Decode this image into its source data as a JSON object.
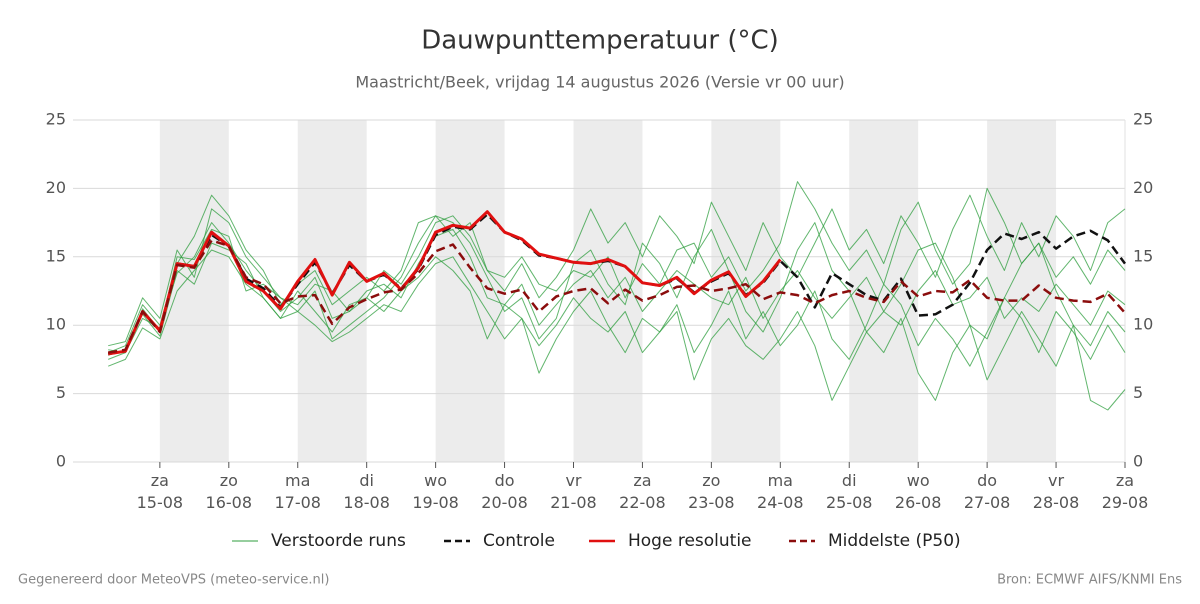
{
  "chart_data": {
    "type": "line",
    "title": "Dauwpunttemperatuur (°C)",
    "subtitle": "Maastricht/Beek, vrijdag 14 augustus 2026 (Versie vr 00 uur)",
    "footer_left": "Gegenereerd door MeteoVPS (meteo-service.nl)",
    "footer_right": "Bron: ECMWF AIFS/KNMI Ens",
    "grid": true,
    "xlim": [
      -0.26,
      15
    ],
    "xticks": [
      {
        "value": 1,
        "label": "za\n15-08"
      },
      {
        "value": 2,
        "label": "zo\n16-08"
      },
      {
        "value": 3,
        "label": "ma\n17-08"
      },
      {
        "value": 4,
        "label": "di\n18-08"
      },
      {
        "value": 5,
        "label": "wo\n19-08"
      },
      {
        "value": 6,
        "label": "do\n20-08"
      },
      {
        "value": 7,
        "label": "vr\n21-08"
      },
      {
        "value": 8,
        "label": "za\n22-08"
      },
      {
        "value": 9,
        "label": "zo\n23-08"
      },
      {
        "value": 10,
        "label": "ma\n24-08"
      },
      {
        "value": 11,
        "label": "di\n25-08"
      },
      {
        "value": 12,
        "label": "wo\n26-08"
      },
      {
        "value": 13,
        "label": "do\n27-08"
      },
      {
        "value": 14,
        "label": "vr\n28-08"
      },
      {
        "value": 15,
        "label": "za\n29-08"
      }
    ],
    "ylim": [
      0,
      25
    ],
    "yticks": [
      0,
      5,
      10,
      15,
      20,
      25
    ],
    "x": [
      0.25,
      0.5,
      0.75,
      1,
      1.25,
      1.5,
      1.75,
      2,
      2.25,
      2.5,
      2.75,
      3,
      3.25,
      3.5,
      3.75,
      4,
      4.25,
      4.5,
      4.75,
      5,
      5.25,
      5.5,
      5.75,
      6,
      6.25,
      6.5,
      6.75,
      7,
      7.25,
      7.5,
      7.75,
      8,
      8.25,
      8.5,
      8.75,
      9,
      9.25,
      9.5,
      9.75,
      10,
      10.25,
      10.5,
      10.75,
      11,
      11.25,
      11.5,
      11.75,
      12,
      12.25,
      12.5,
      12.75,
      13,
      13.25,
      13.5,
      13.75,
      14,
      14.25,
      14.5,
      14.75,
      15
    ],
    "ensemble": {
      "name": "Verstoorde runs",
      "color": "#2e9e3e",
      "members": [
        [
          7.5,
          8.0,
          10.5,
          9.8,
          13.8,
          15.0,
          17.5,
          16.0,
          14.0,
          12.5,
          11.0,
          12.0,
          13.5,
          10.5,
          11.0,
          12.5,
          13.0,
          12.0,
          14.5,
          16.5,
          17.0,
          15.0,
          12.0,
          11.5,
          13.0,
          10.0,
          11.5,
          13.0,
          14.0,
          12.0,
          13.5,
          11.0,
          12.5,
          14.0,
          13.0,
          12.0,
          11.5,
          13.5,
          10.5,
          12.5,
          14.0,
          12.0,
          10.5,
          12.0,
          13.5,
          11.0,
          10.0,
          12.5,
          14.0,
          11.5,
          12.0,
          13.5,
          10.5,
          12.0,
          11.0,
          13.0,
          11.5,
          10.0,
          12.5,
          11.5
        ],
        [
          8.5,
          8.8,
          12.0,
          10.5,
          15.5,
          13.5,
          18.5,
          17.5,
          15.0,
          13.5,
          12.0,
          11.0,
          12.5,
          9.0,
          10.0,
          11.0,
          12.0,
          13.5,
          16.0,
          18.0,
          17.5,
          16.0,
          13.5,
          11.0,
          12.0,
          9.0,
          10.5,
          14.5,
          15.5,
          13.0,
          11.5,
          16.0,
          14.5,
          12.0,
          15.0,
          17.0,
          14.0,
          11.0,
          9.5,
          12.0,
          15.5,
          17.5,
          14.0,
          12.5,
          9.5,
          11.0,
          13.0,
          15.5,
          16.0,
          13.5,
          10.0,
          9.0,
          12.0,
          14.5,
          16.0,
          12.5,
          10.0,
          8.5,
          11.0,
          9.5
        ],
        [
          7.0,
          7.5,
          9.8,
          9.0,
          12.5,
          14.0,
          15.5,
          15.0,
          13.0,
          12.0,
          10.5,
          11.0,
          10.0,
          8.8,
          9.5,
          10.5,
          11.5,
          11.0,
          13.0,
          14.5,
          15.0,
          13.0,
          11.0,
          9.0,
          10.5,
          6.5,
          9.0,
          11.0,
          12.5,
          10.0,
          8.0,
          10.5,
          9.5,
          11.5,
          8.0,
          10.0,
          12.5,
          9.0,
          11.0,
          8.5,
          10.0,
          12.5,
          9.0,
          7.5,
          10.0,
          13.0,
          11.5,
          8.5,
          10.5,
          9.0,
          7.0,
          9.5,
          12.0,
          10.5,
          8.0,
          11.0,
          9.5,
          7.5,
          10.0,
          8.0
        ],
        [
          8.0,
          8.5,
          11.5,
          10.0,
          14.5,
          16.5,
          19.5,
          18.0,
          15.5,
          14.0,
          11.5,
          13.0,
          14.0,
          11.5,
          12.5,
          13.5,
          12.5,
          14.0,
          17.5,
          18.0,
          16.5,
          17.5,
          14.0,
          12.5,
          14.5,
          12.0,
          13.5,
          15.5,
          18.5,
          16.0,
          17.5,
          15.0,
          18.0,
          16.5,
          14.5,
          19.0,
          16.5,
          14.0,
          17.5,
          15.0,
          13.5,
          16.0,
          18.5,
          15.5,
          17.0,
          14.5,
          18.0,
          16.0,
          13.5,
          17.0,
          19.5,
          16.5,
          14.0,
          17.5,
          15.0,
          18.0,
          16.5,
          14.0,
          17.5,
          18.5
        ],
        [
          7.8,
          8.2,
          10.8,
          9.2,
          14.0,
          13.0,
          16.0,
          15.5,
          14.5,
          12.0,
          10.5,
          12.5,
          11.0,
          9.5,
          11.5,
          12.0,
          11.0,
          12.5,
          13.5,
          15.0,
          14.0,
          12.5,
          9.0,
          11.5,
          10.5,
          8.5,
          10.0,
          12.0,
          10.5,
          9.5,
          11.0,
          8.0,
          9.5,
          11.0,
          6.0,
          9.0,
          10.5,
          8.5,
          7.5,
          9.0,
          11.0,
          8.5,
          4.5,
          7.0,
          9.5,
          8.0,
          10.5,
          6.5,
          4.5,
          8.0,
          10.0,
          6.0,
          8.5,
          11.0,
          9.0,
          7.0,
          10.0,
          4.5,
          3.8,
          5.3
        ],
        [
          8.2,
          8.0,
          11.2,
          9.6,
          15.0,
          14.8,
          17.0,
          16.5,
          12.5,
          13.0,
          12.0,
          11.5,
          13.0,
          12.5,
          11.0,
          12.0,
          14.0,
          13.0,
          15.0,
          17.5,
          18.0,
          16.5,
          14.0,
          13.5,
          15.0,
          13.0,
          12.5,
          14.0,
          13.5,
          15.0,
          12.0,
          14.5,
          13.0,
          15.5,
          16.0,
          13.5,
          15.0,
          12.5,
          14.0,
          16.0,
          20.5,
          18.5,
          16.0,
          14.0,
          15.5,
          13.0,
          17.0,
          19.0,
          15.5,
          13.0,
          14.5,
          20.0,
          17.5,
          14.5,
          16.0,
          13.5,
          15.0,
          13.0,
          15.5,
          14.0
        ]
      ]
    },
    "series": [
      {
        "name": "Controle",
        "color": "#111111",
        "dash": "dashed",
        "values": [
          7.9,
          8.1,
          11.0,
          9.6,
          14.5,
          14.3,
          16.6,
          15.8,
          13.4,
          12.7,
          11.3,
          13.0,
          14.6,
          12.3,
          14.4,
          13.2,
          13.7,
          12.7,
          14.1,
          16.6,
          17.2,
          17.0,
          18.1,
          16.8,
          16.2,
          15.1,
          14.9,
          14.6,
          14.5,
          14.7,
          14.3,
          13.1,
          12.9,
          13.4,
          12.4,
          13.2,
          13.8,
          12.2,
          13.1,
          14.7,
          13.5,
          11.3,
          13.8,
          13.0,
          12.2,
          11.8,
          13.4,
          10.7,
          10.8,
          11.5,
          13.1,
          15.5,
          16.7,
          16.3,
          16.8,
          15.6,
          16.5,
          16.9,
          16.2,
          14.5
        ]
      },
      {
        "name": "Hoge resolutie",
        "color": "#e01010",
        "dash": "solid",
        "values": [
          7.9,
          8.1,
          11.0,
          9.6,
          14.5,
          14.3,
          16.8,
          15.8,
          13.2,
          12.5,
          11.2,
          13.2,
          14.8,
          12.2,
          14.6,
          13.2,
          13.8,
          12.6,
          14.2,
          16.8,
          17.3,
          17.1,
          18.3,
          16.8,
          16.3,
          15.2,
          14.9,
          14.6,
          14.5,
          14.8,
          14.3,
          13.1,
          12.9,
          13.5,
          12.3,
          13.3,
          13.9,
          12.1,
          13.2,
          14.8,
          null,
          null,
          null,
          null,
          null,
          null,
          null,
          null,
          null,
          null,
          null,
          null,
          null,
          null,
          null,
          null,
          null,
          null,
          null,
          null
        ]
      },
      {
        "name": "Middelste (P50)",
        "color": "#8b0d0d",
        "dash": "dashed",
        "values": [
          8.0,
          8.2,
          11.0,
          9.5,
          14.4,
          14.2,
          16.2,
          15.8,
          13.5,
          13.0,
          11.6,
          12.1,
          12.2,
          10.1,
          11.3,
          11.9,
          12.4,
          12.6,
          13.8,
          15.4,
          15.9,
          14.2,
          12.7,
          12.3,
          12.6,
          11.0,
          12.1,
          12.5,
          12.7,
          11.6,
          12.6,
          11.8,
          12.2,
          12.8,
          12.9,
          12.5,
          12.7,
          13.0,
          11.9,
          12.4,
          12.2,
          11.6,
          12.2,
          12.5,
          12.0,
          11.7,
          13.2,
          12.1,
          12.5,
          12.4,
          13.3,
          12.0,
          11.8,
          11.8,
          12.9,
          12.0,
          11.8,
          11.7,
          12.3,
          10.9
        ]
      }
    ]
  }
}
